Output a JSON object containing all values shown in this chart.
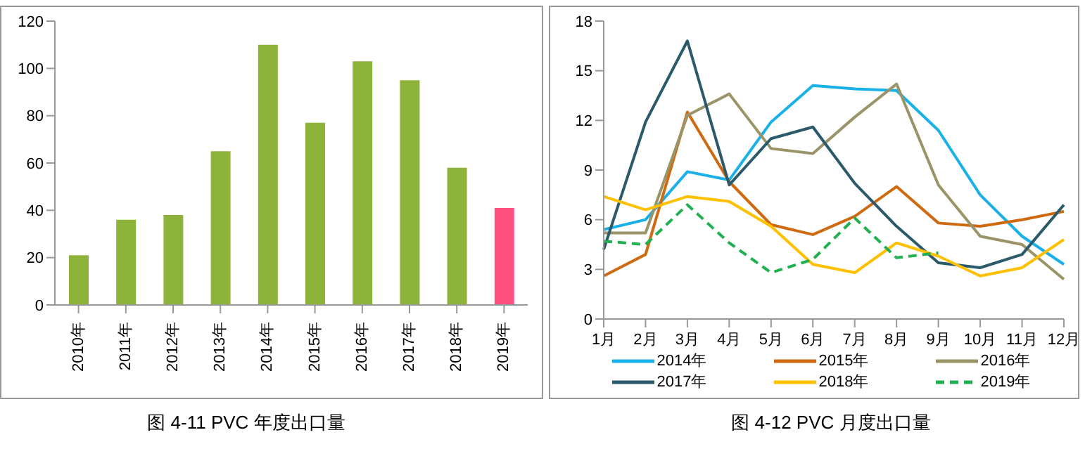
{
  "chart_data": [
    {
      "type": "bar",
      "title": "图 4-11 PVC 年度出口量",
      "categories": [
        "2010年",
        "2011年",
        "2012年",
        "2013年",
        "2014年",
        "2015年",
        "2016年",
        "2017年",
        "2018年",
        "2019年"
      ],
      "values": [
        21,
        36,
        38,
        65,
        110,
        77,
        103,
        95,
        58,
        41
      ],
      "colors": [
        "#8db33a",
        "#8db33a",
        "#8db33a",
        "#8db33a",
        "#8db33a",
        "#8db33a",
        "#8db33a",
        "#8db33a",
        "#8db33a",
        "#ff5080"
      ],
      "ylim": [
        0,
        120
      ],
      "yticks": [
        0,
        20,
        40,
        60,
        80,
        100,
        120
      ],
      "grid": false,
      "legend": false
    },
    {
      "type": "line",
      "title": "图 4-12 PVC 月度出口量",
      "categories": [
        "1月",
        "2月",
        "3月",
        "4月",
        "5月",
        "6月",
        "7月",
        "8月",
        "9月",
        "10月",
        "11月",
        "12月"
      ],
      "series": [
        {
          "name": "2014年",
          "color": "#1ab0e8",
          "values": [
            5.4,
            6.0,
            8.9,
            8.4,
            11.9,
            14.1,
            13.9,
            13.8,
            11.4,
            7.5,
            5.0,
            3.3
          ]
        },
        {
          "name": "2015年",
          "color": "#d06a10",
          "values": [
            2.6,
            3.9,
            12.5,
            8.3,
            5.7,
            5.1,
            6.2,
            8.0,
            5.8,
            5.6,
            6.0,
            6.5
          ]
        },
        {
          "name": "2016年",
          "color": "#9a9468",
          "values": [
            5.2,
            5.2,
            12.3,
            13.6,
            10.3,
            10.0,
            12.2,
            14.2,
            8.1,
            5.0,
            4.5,
            2.4
          ]
        },
        {
          "name": "2017年",
          "color": "#2b5a6a",
          "values": [
            4.2,
            11.9,
            16.8,
            8.1,
            10.9,
            11.6,
            8.2,
            5.6,
            3.4,
            3.1,
            3.9,
            6.9
          ]
        },
        {
          "name": "2018年",
          "color": "#ffc000",
          "values": [
            7.4,
            6.6,
            7.4,
            7.1,
            5.6,
            3.3,
            2.8,
            4.6,
            3.8,
            2.6,
            3.1,
            4.8
          ]
        },
        {
          "name": "2019年",
          "color": "#20b050",
          "line_style": "dashed",
          "values": [
            4.7,
            4.5,
            6.9,
            4.6,
            2.8,
            3.6,
            6.1,
            3.7,
            4.0,
            null,
            null,
            null
          ]
        }
      ],
      "ylim": [
        0,
        18
      ],
      "yticks": [
        0,
        3,
        6,
        9,
        12,
        15,
        18
      ],
      "grid": false,
      "legend": "bottom",
      "marker": "none",
      "line_style": "solid"
    }
  ]
}
